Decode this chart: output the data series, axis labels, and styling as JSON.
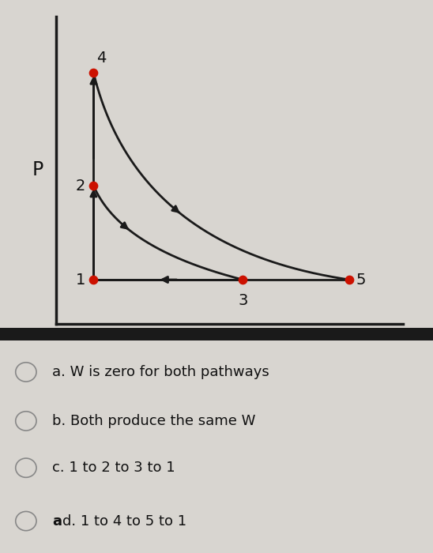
{
  "bg_color": "#d8d5d0",
  "plot_bg_color": "#d8d5d0",
  "axis_color": "#1a1a1a",
  "curve_color": "#1a1a1a",
  "dot_color": "#cc1100",
  "points": {
    "1": [
      1.0,
      1.0
    ],
    "2": [
      1.0,
      2.5
    ],
    "3": [
      3.8,
      1.0
    ],
    "4": [
      1.0,
      4.3
    ],
    "5": [
      5.8,
      1.0
    ]
  },
  "xlim": [
    0.3,
    6.8
  ],
  "ylim": [
    0.3,
    5.2
  ],
  "options": [
    "a. W is zero for both pathways",
    "b. Both produce the same W",
    "c. 1 to 2 to 3 to 1",
    "ad. 1 to 4 to 5 to 1"
  ],
  "label_fontsize": 14,
  "option_fontsize": 13,
  "dot_size": 55,
  "curve2_cp": [
    1.5,
    3.2
  ],
  "curve4_cp": [
    2.5,
    2.8
  ]
}
